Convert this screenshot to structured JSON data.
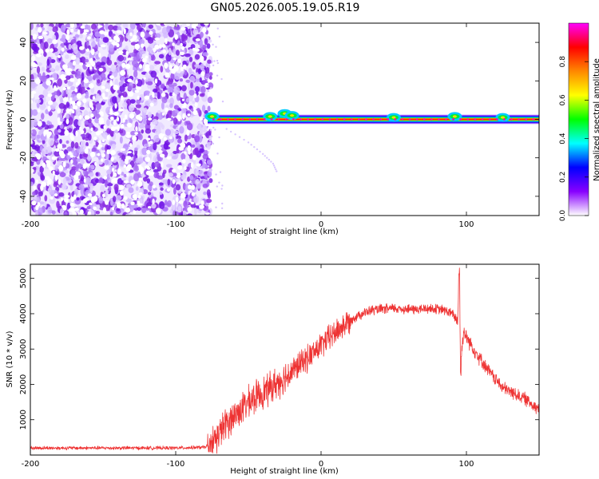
{
  "title": "GN05.2026.005.19.05.R19",
  "chart_data": [
    {
      "type": "heatmap",
      "xlabel": "Height of straight line (km)",
      "ylabel": "Frequency (Hz)",
      "xlim": [
        -200,
        150
      ],
      "ylim": [
        -50,
        50
      ],
      "xticks": [
        -200,
        -100,
        0,
        100
      ],
      "yticks": [
        -40,
        -20,
        0,
        20,
        40
      ],
      "colorbar": {
        "label": "Normalized spectral amplitude",
        "range": [
          0,
          1
        ],
        "ticks": [
          "0.0",
          "0.2",
          "0.4",
          "0.6",
          "0.8"
        ],
        "stops": [
          "#ffffff",
          "#8800ff",
          "#0000ff",
          "#00ffff",
          "#00ff00",
          "#ffff00",
          "#ff8800",
          "#ff0000",
          "#ff00ff"
        ]
      },
      "noise_region": {
        "x": [
          -200,
          -78
        ],
        "y": [
          -50,
          50
        ],
        "amplitude": "0.0-0.2"
      },
      "carrier_line": {
        "x": [
          -78,
          150
        ],
        "frequency": 0,
        "peak_amplitude": 1.0,
        "bumps": [
          [
            -75,
            1.5
          ],
          [
            -35,
            1.5
          ],
          [
            -25,
            3
          ],
          [
            -20,
            2
          ],
          [
            50,
            1
          ],
          [
            92,
            1.5
          ],
          [
            125,
            1
          ]
        ]
      },
      "faint_arc": {
        "points": [
          [
            -65,
            -5
          ],
          [
            -50,
            -12
          ],
          [
            -40,
            -18
          ],
          [
            -33,
            -23
          ],
          [
            -30,
            -28
          ]
        ]
      },
      "grid": false
    },
    {
      "type": "line",
      "xlabel": "Height of straight line (km)",
      "ylabel": "SNR (10 * v/v)",
      "xlim": [
        -200,
        150
      ],
      "ylim": [
        0,
        5400
      ],
      "xticks": [
        -200,
        -100,
        0,
        100
      ],
      "yticks": [
        1000,
        2000,
        3000,
        4000,
        5000
      ],
      "series": [
        {
          "color": "#ee3333",
          "points": [
            [
              -200,
              200
            ],
            [
              -150,
              200
            ],
            [
              -100,
              200
            ],
            [
              -80,
              220
            ],
            [
              -75,
              350
            ],
            [
              -65,
              900
            ],
            [
              -55,
              1300
            ],
            [
              -45,
              1650
            ],
            [
              -35,
              1900
            ],
            [
              -25,
              2200
            ],
            [
              -15,
              2550
            ],
            [
              -5,
              2900
            ],
            [
              5,
              3300
            ],
            [
              15,
              3650
            ],
            [
              25,
              3950
            ],
            [
              35,
              4100
            ],
            [
              50,
              4150
            ],
            [
              65,
              4120
            ],
            [
              75,
              4150
            ],
            [
              85,
              4100
            ],
            [
              90,
              4000
            ],
            [
              94,
              3800
            ],
            [
              95,
              5100
            ],
            [
              96,
              2600
            ],
            [
              98,
              3500
            ],
            [
              105,
              3000
            ],
            [
              115,
              2400
            ],
            [
              125,
              1900
            ],
            [
              140,
              1600
            ],
            [
              150,
              1300
            ]
          ]
        }
      ],
      "grid": false
    }
  ]
}
